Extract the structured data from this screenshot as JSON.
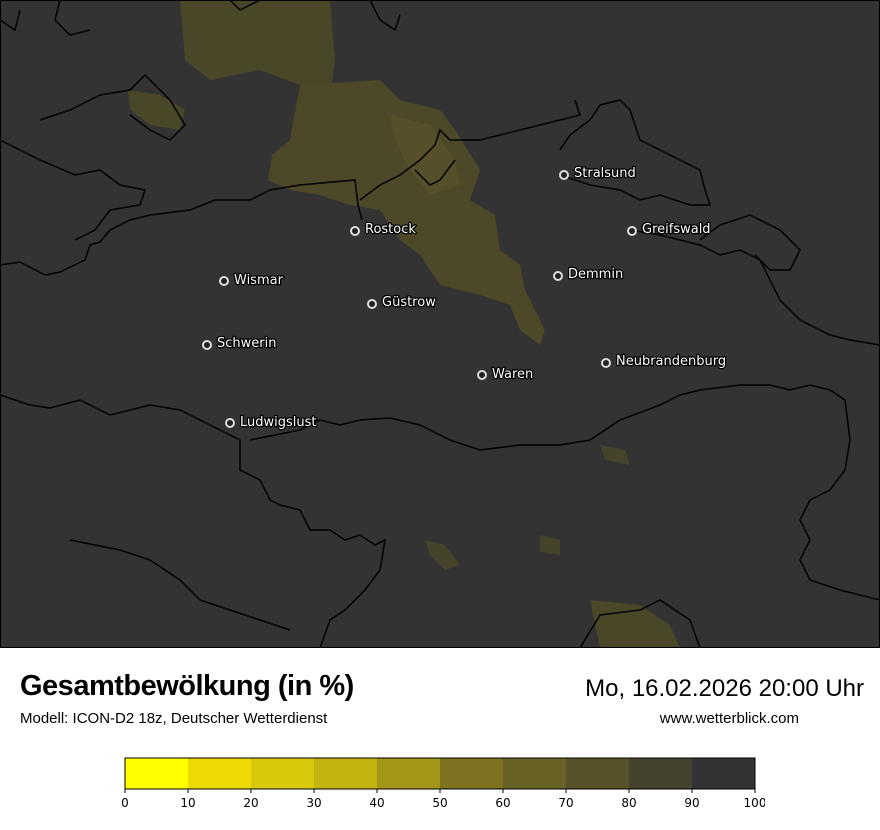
{
  "header": {
    "title": "Gesamtbewölkung (in %)",
    "subtitle": "Modell: ICON-D2 18z, Deutscher Wetterdienst",
    "datetime": "Mo, 16.02.2026 20:00 Uhr",
    "website": "www.wetterblick.com"
  },
  "map": {
    "background_color": "#333333",
    "cities": [
      {
        "name": "Stralsund"
      },
      {
        "name": "Greifswald"
      },
      {
        "name": "Rostock"
      },
      {
        "name": "Demmin"
      },
      {
        "name": "Wismar"
      },
      {
        "name": "Güstrow"
      },
      {
        "name": "Schwerin"
      },
      {
        "name": "Neubrandenburg"
      },
      {
        "name": "Waren"
      },
      {
        "name": "Ludwigslust"
      }
    ]
  },
  "colorbar": {
    "unit": "%",
    "ticks": [
      "0",
      "10",
      "20",
      "30",
      "40",
      "50",
      "60",
      "70",
      "80",
      "90",
      "100"
    ],
    "colors": [
      "#ffff00",
      "#eed905",
      "#d8c70a",
      "#c3b40f",
      "#a29517",
      "#7c721f",
      "#686125",
      "#57522a",
      "#45422e",
      "#333333"
    ]
  }
}
